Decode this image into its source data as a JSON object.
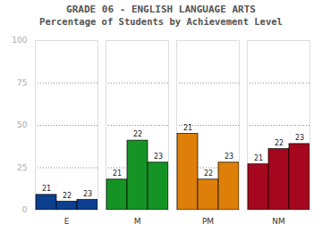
{
  "chart_data": {
    "type": "bar",
    "title": "GRADE 06 - ENGLISH LANGUAGE ARTS",
    "subtitle": "Percentage of Students by Achievement Level",
    "categories": [
      "E",
      "M",
      "PM",
      "NM"
    ],
    "colors": [
      "#0d3f8f",
      "#159425",
      "#dd7f08",
      "#a5081e"
    ],
    "series": [
      {
        "name": "21",
        "values": [
          9,
          18,
          45,
          27
        ]
      },
      {
        "name": "22",
        "values": [
          5,
          41,
          18,
          36
        ]
      },
      {
        "name": "23",
        "values": [
          6,
          28,
          28,
          39
        ]
      }
    ],
    "ylim": [
      0,
      100
    ],
    "yticks": [
      0,
      25,
      50,
      75,
      100
    ],
    "grid": true
  }
}
